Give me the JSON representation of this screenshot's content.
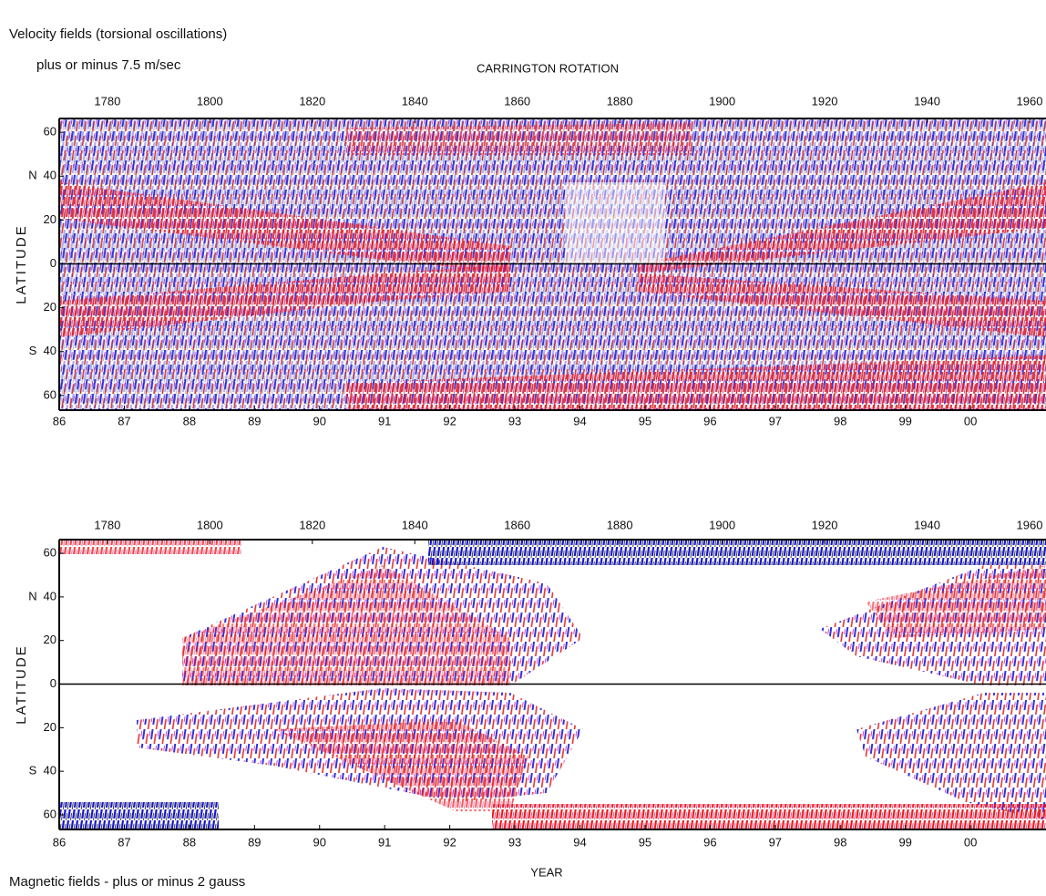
{
  "chart_data": [
    {
      "type": "heatmap",
      "title": "Velocity fields (torsional oscillations)",
      "subtitle": "plus or minus 7.5 m/sec",
      "x2label": "CARRINGTON ROTATION",
      "ylabel": "LATITUDE",
      "hemisphere_labels": [
        {
          "value": 40,
          "label": "N"
        },
        {
          "value": -40,
          "label": "S"
        }
      ],
      "xlim": [
        1986,
        2001.16
      ],
      "xticks": [
        {
          "value": 1986,
          "label": "86"
        },
        {
          "value": 1987,
          "label": "87"
        },
        {
          "value": 1988,
          "label": "88"
        },
        {
          "value": 1989,
          "label": "89"
        },
        {
          "value": 1990,
          "label": "90"
        },
        {
          "value": 1991,
          "label": "91"
        },
        {
          "value": 1992,
          "label": "92"
        },
        {
          "value": 1993,
          "label": "93"
        },
        {
          "value": 1994,
          "label": "94"
        },
        {
          "value": 1995,
          "label": "95"
        },
        {
          "value": 1996,
          "label": "96"
        },
        {
          "value": 1997,
          "label": "97"
        },
        {
          "value": 1998,
          "label": "98"
        },
        {
          "value": 1999,
          "label": "99"
        },
        {
          "value": 2000,
          "label": "00"
        }
      ],
      "x2lim": [
        1770.6,
        1963.2
      ],
      "x2ticks": [
        1780,
        1800,
        1820,
        1840,
        1860,
        1880,
        1900,
        1920,
        1940,
        1960
      ],
      "ylim": [
        -66.7,
        66.3
      ],
      "yticks": [
        60,
        40,
        20,
        0,
        {
          "value": -20,
          "label": "20"
        },
        {
          "value": -40,
          "label": "40"
        },
        {
          "value": -60,
          "label": "60"
        }
      ]
    },
    {
      "type": "heatmap",
      "title": "Magnetic fields - plus or minus 2 gauss",
      "xlabel": "YEAR",
      "ylabel": "LATITUDE",
      "hemisphere_labels": [
        {
          "value": 40,
          "label": "N"
        },
        {
          "value": -40,
          "label": "S"
        }
      ],
      "xlim": [
        1986,
        2001.16
      ],
      "xticks": [
        {
          "value": 1986,
          "label": "86"
        },
        {
          "value": 1987,
          "label": "87"
        },
        {
          "value": 1988,
          "label": "88"
        },
        {
          "value": 1989,
          "label": "89"
        },
        {
          "value": 1990,
          "label": "90"
        },
        {
          "value": 1991,
          "label": "91"
        },
        {
          "value": 1992,
          "label": "92"
        },
        {
          "value": 1993,
          "label": "93"
        },
        {
          "value": 1994,
          "label": "94"
        },
        {
          "value": 1995,
          "label": "95"
        },
        {
          "value": 1996,
          "label": "96"
        },
        {
          "value": 1997,
          "label": "97"
        },
        {
          "value": 1998,
          "label": "98"
        },
        {
          "value": 1999,
          "label": "99"
        },
        {
          "value": 2000,
          "label": "00"
        }
      ],
      "x2lim": [
        1770.6,
        1963.2
      ],
      "x2ticks": [
        1780,
        1800,
        1820,
        1840,
        1860,
        1880,
        1900,
        1920,
        1940,
        1960
      ],
      "ylim": [
        -66.7,
        66.3
      ],
      "yticks": [
        60,
        40,
        20,
        0,
        {
          "value": -20,
          "label": "20"
        },
        {
          "value": -40,
          "label": "40"
        },
        {
          "value": -60,
          "label": "60"
        }
      ]
    }
  ]
}
